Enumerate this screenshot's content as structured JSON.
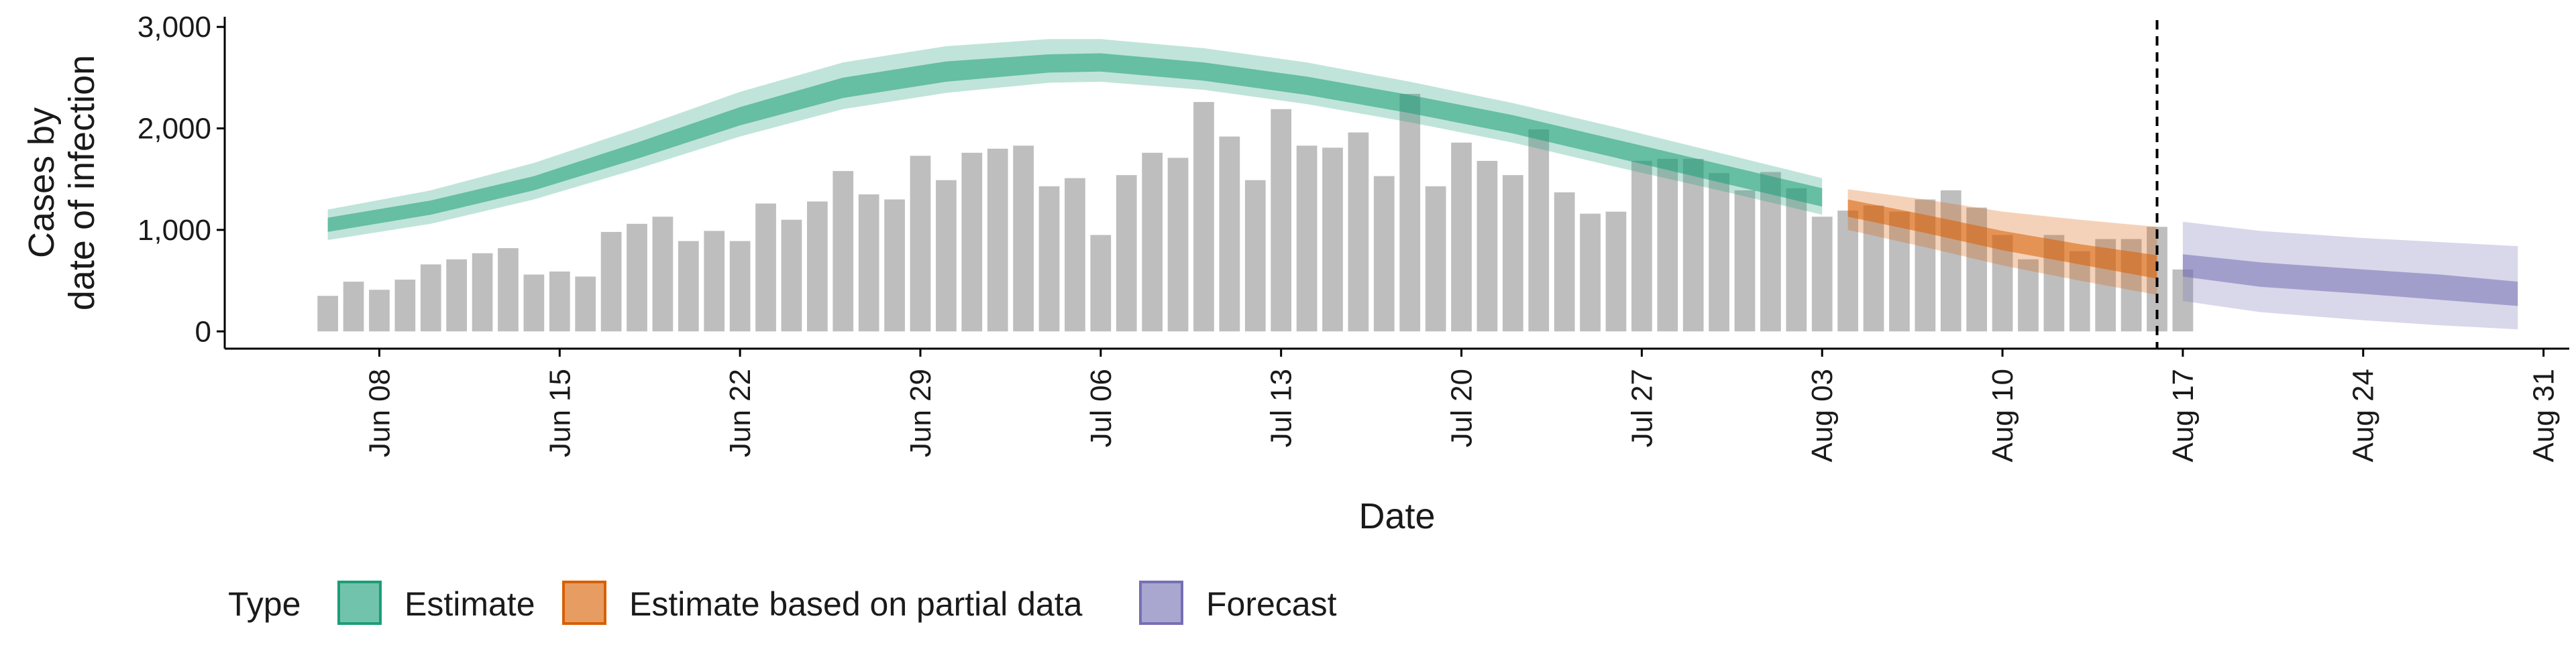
{
  "chart_data": {
    "type": "bar",
    "xlabel": "Date",
    "ylabel_lines": [
      "Cases by",
      "date of infection"
    ],
    "ylim": [
      0,
      3100
    ],
    "y_ticks": [
      0,
      1000,
      2000,
      3000
    ],
    "y_tick_labels": [
      "0",
      "1,000",
      "2,000",
      "3,000"
    ],
    "x_ticks": [
      "2020-06-08",
      "2020-06-15",
      "2020-06-22",
      "2020-06-29",
      "2020-07-06",
      "2020-07-13",
      "2020-07-20",
      "2020-07-27",
      "2020-08-03",
      "2020-08-10",
      "2020-08-17",
      "2020-08-24",
      "2020-08-31"
    ],
    "x_tick_labels": [
      "Jun 08",
      "Jun 15",
      "Jun 22",
      "Jun 29",
      "Jul 06",
      "Jul 13",
      "Jul 20",
      "Jul 27",
      "Aug 03",
      "Aug 10",
      "Aug 17",
      "Aug 24",
      "Aug 31"
    ],
    "xlim": [
      "2020-06-02",
      "2020-09-01"
    ],
    "vline_date": "2020-08-16",
    "grid": false,
    "bar_color": "#bebebe",
    "bars": {
      "start_date": "2020-06-06",
      "values": [
        350,
        490,
        410,
        510,
        660,
        710,
        770,
        820,
        560,
        590,
        540,
        980,
        1060,
        1130,
        890,
        990,
        890,
        1260,
        1100,
        1280,
        1580,
        1350,
        1300,
        1730,
        1490,
        1760,
        1800,
        1830,
        1430,
        1510,
        950,
        1540,
        1760,
        1710,
        2260,
        1920,
        1490,
        2190,
        1830,
        1810,
        1960,
        1530,
        2340,
        1430,
        1860,
        1680,
        1540,
        1990,
        1370,
        1160,
        1180,
        1680,
        1700,
        1700,
        1560,
        1390,
        1570,
        1410,
        1130,
        1190,
        1240,
        1180,
        1300,
        1390,
        1220,
        950,
        710,
        950,
        790,
        910,
        910,
        1030,
        610
      ]
    },
    "series": [
      {
        "name": "Estimate",
        "color": "#1b9e77",
        "x": [
          "2020-06-06",
          "2020-06-10",
          "2020-06-14",
          "2020-06-18",
          "2020-06-22",
          "2020-06-26",
          "2020-06-30",
          "2020-07-04",
          "2020-07-06",
          "2020-07-10",
          "2020-07-14",
          "2020-07-18",
          "2020-07-22",
          "2020-07-26",
          "2020-07-30",
          "2020-08-03"
        ],
        "median": [
          1050,
          1220,
          1460,
          1780,
          2120,
          2400,
          2560,
          2640,
          2650,
          2560,
          2420,
          2240,
          2040,
          1800,
          1560,
          1320
        ],
        "inner_low": [
          980,
          1150,
          1390,
          1700,
          2030,
          2300,
          2460,
          2550,
          2560,
          2470,
          2330,
          2150,
          1950,
          1710,
          1470,
          1230
        ],
        "inner_high": [
          1120,
          1290,
          1530,
          1860,
          2210,
          2500,
          2660,
          2730,
          2740,
          2650,
          2510,
          2330,
          2130,
          1890,
          1650,
          1410
        ],
        "outer_low": [
          900,
          1060,
          1300,
          1600,
          1920,
          2190,
          2350,
          2450,
          2460,
          2380,
          2240,
          2060,
          1860,
          1620,
          1390,
          1150
        ],
        "outer_high": [
          1200,
          1390,
          1660,
          2000,
          2360,
          2650,
          2810,
          2880,
          2880,
          2790,
          2650,
          2460,
          2250,
          2010,
          1760,
          1510
        ]
      },
      {
        "name": "Estimate based on partial data",
        "color": "#d95f02",
        "x": [
          "2020-08-04",
          "2020-08-07",
          "2020-08-10",
          "2020-08-13",
          "2020-08-16"
        ],
        "median": [
          1210,
          1060,
          900,
          770,
          640
        ],
        "inner_low": [
          1130,
          970,
          800,
          660,
          520
        ],
        "inner_high": [
          1300,
          1150,
          990,
          860,
          750
        ],
        "outer_low": [
          1000,
          830,
          650,
          500,
          360
        ],
        "outer_high": [
          1400,
          1300,
          1180,
          1100,
          1030
        ]
      },
      {
        "name": "Forecast",
        "color": "#7570b3",
        "x": [
          "2020-08-17",
          "2020-08-20",
          "2020-08-24",
          "2020-08-27",
          "2020-08-30"
        ],
        "median": [
          650,
          560,
          490,
          430,
          370
        ],
        "inner_low": [
          540,
          440,
          370,
          310,
          250
        ],
        "inner_high": [
          760,
          680,
          610,
          560,
          490
        ],
        "outer_low": [
          300,
          190,
          110,
          60,
          20
        ],
        "outer_high": [
          1080,
          990,
          920,
          880,
          840
        ]
      }
    ],
    "legend": {
      "title": "Type",
      "position": "bottom",
      "items": [
        "Estimate",
        "Estimate based on partial data",
        "Forecast"
      ]
    }
  }
}
